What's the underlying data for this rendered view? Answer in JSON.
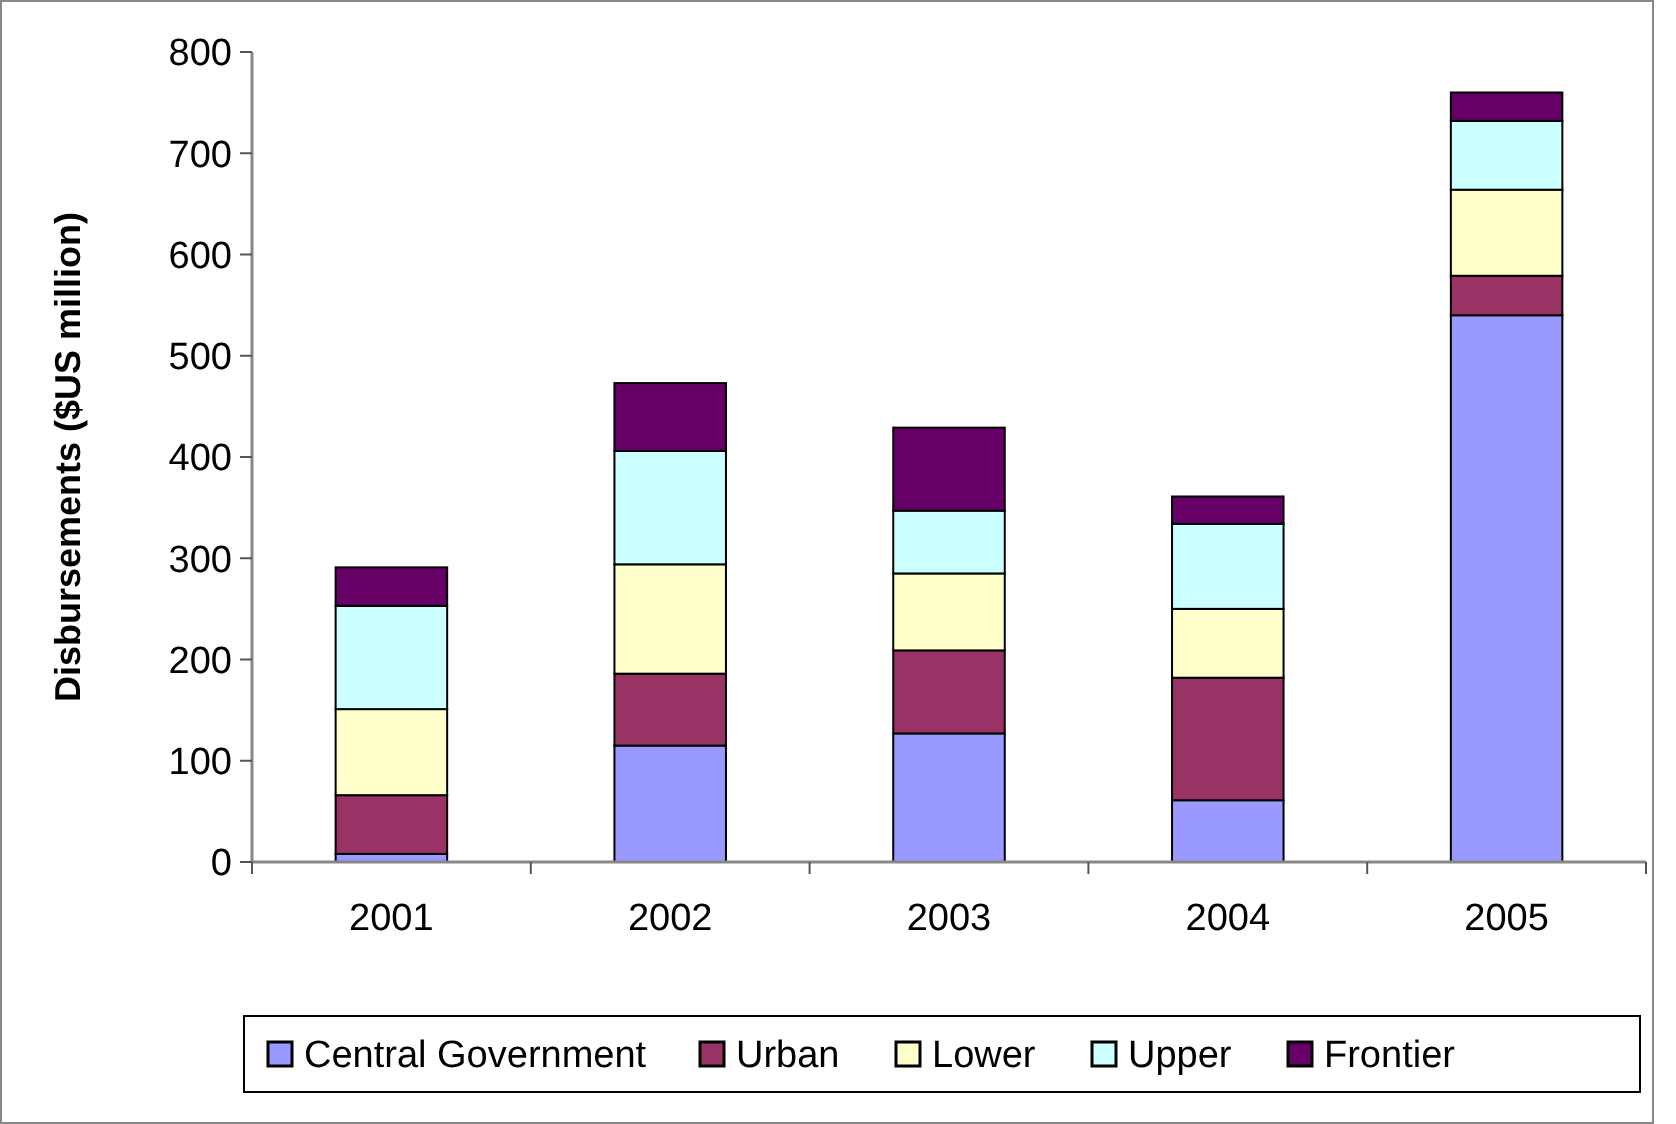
{
  "chart_data": {
    "type": "bar",
    "stacked": true,
    "ylabel": "Disbursements ($US million)",
    "categories": [
      "2001",
      "2002",
      "2003",
      "2004",
      "2005"
    ],
    "ylim": [
      0,
      800
    ],
    "yticks": [
      0,
      100,
      200,
      300,
      400,
      500,
      600,
      700,
      800
    ],
    "legend": "bottom",
    "series": [
      {
        "name": "Central Government",
        "color": "#9999ff",
        "values": [
          8,
          115,
          127,
          61,
          540
        ]
      },
      {
        "name": "Urban",
        "color": "#993366",
        "values": [
          58,
          71,
          82,
          121,
          39
        ]
      },
      {
        "name": "Lower",
        "color": "#ffffcc",
        "values": [
          85,
          108,
          76,
          68,
          85
        ]
      },
      {
        "name": "Upper",
        "color": "#ccffff",
        "values": [
          102,
          112,
          62,
          84,
          68
        ]
      },
      {
        "name": "Frontier",
        "color": "#660066",
        "values": [
          38,
          67,
          82,
          27,
          28
        ]
      }
    ]
  }
}
